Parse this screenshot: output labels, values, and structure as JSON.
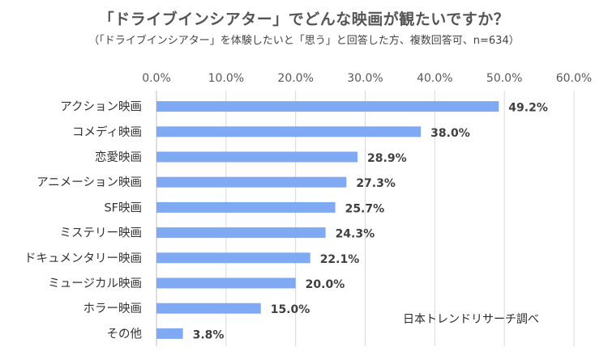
{
  "title": "「ドライブインシアター」でどんな映画が観たいですか？",
  "subtitle": "（「ドライブインシアター」を体験したいと「思う」と回答した方、複数回答可、n=634）",
  "source": "日本トレンドリサーチ調べ",
  "chart_data": {
    "type": "bar",
    "orientation": "horizontal",
    "title": "「ドライブインシアター」でどんな映画が観たいですか？",
    "subtitle": "（「ドライブインシアター」を体験したいと「思う」と回答した方、複数回答可、n=634）",
    "categories": [
      "アクション映画",
      "コメディ映画",
      "恋愛映画",
      "アニメーション映画",
      "SF映画",
      "ミステリー映画",
      "ドキュメンタリー映画",
      "ミュージカル映画",
      "ホラー映画",
      "その他"
    ],
    "values": [
      49.2,
      38.0,
      28.9,
      27.3,
      25.7,
      24.3,
      22.1,
      20.0,
      15.0,
      3.8
    ],
    "value_labels": [
      "49.2%",
      "38.0%",
      "28.9%",
      "27.3%",
      "25.7%",
      "24.3%",
      "22.1%",
      "20.0%",
      "15.0%",
      "3.8%"
    ],
    "xlim": [
      0,
      60
    ],
    "x_ticks": [
      0,
      10,
      20,
      30,
      40,
      50,
      60
    ],
    "x_tick_labels": [
      "0.0%",
      "10.0%",
      "20.0%",
      "30.0%",
      "40.0%",
      "50.0%",
      "60.0%"
    ],
    "x_axis_position": "top",
    "grid": true,
    "bar_color": "#7fa9f2"
  }
}
